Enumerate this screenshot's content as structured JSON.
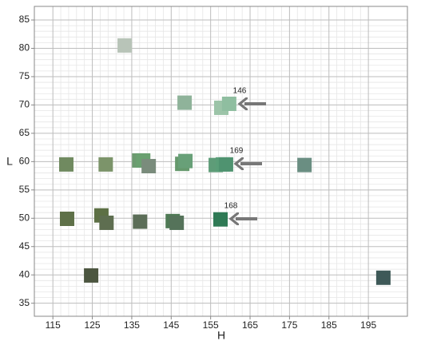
{
  "chart_data": {
    "type": "scatter",
    "xlabel": "H",
    "ylabel": "L",
    "xlim": [
      110.3,
      204.9
    ],
    "ylim": [
      32.7,
      87.4
    ],
    "xticks": [
      115,
      125,
      135,
      145,
      155,
      165,
      175,
      185,
      195
    ],
    "yticks": [
      35,
      40,
      45,
      50,
      55,
      60,
      65,
      70,
      75,
      80,
      85
    ],
    "grid": true,
    "x": [
      133.2,
      148.4,
      157.7,
      159.7,
      118.4,
      128.4,
      136.9,
      137.9,
      139.3,
      147.8,
      148.6,
      156.3,
      158.1,
      158.9,
      178.8,
      118.6,
      127.3,
      128.6,
      137.1,
      145.4,
      146.4,
      157.5,
      124.7,
      198.8
    ],
    "y": [
      80.5,
      70.4,
      69.5,
      70.2,
      59.5,
      59.5,
      60.2,
      60.2,
      59.2,
      59.6,
      60.1,
      59.4,
      59.5,
      59.5,
      59.4,
      49.9,
      50.5,
      49.2,
      49.4,
      49.5,
      49.2,
      49.8,
      39.9,
      39.5
    ],
    "colors": [
      "#b8c4b8",
      "#8fb39a",
      "#9cc4a8",
      "#8fbea0",
      "#708a60",
      "#7c946a",
      "#6c9a70",
      "#6aa070",
      "#7a8c7c",
      "#66996d",
      "#68a078",
      "#5e9c78",
      "#5a9e78",
      "#4f9370",
      "#6a8e82",
      "#5e7048",
      "#5d7045",
      "#5e6e50",
      "#5c6e58",
      "#4f7a55",
      "#55735a",
      "#2f7a55",
      "#4c5640",
      "#3e5958"
    ],
    "annotations": [
      "146",
      "169",
      "168"
    ]
  }
}
